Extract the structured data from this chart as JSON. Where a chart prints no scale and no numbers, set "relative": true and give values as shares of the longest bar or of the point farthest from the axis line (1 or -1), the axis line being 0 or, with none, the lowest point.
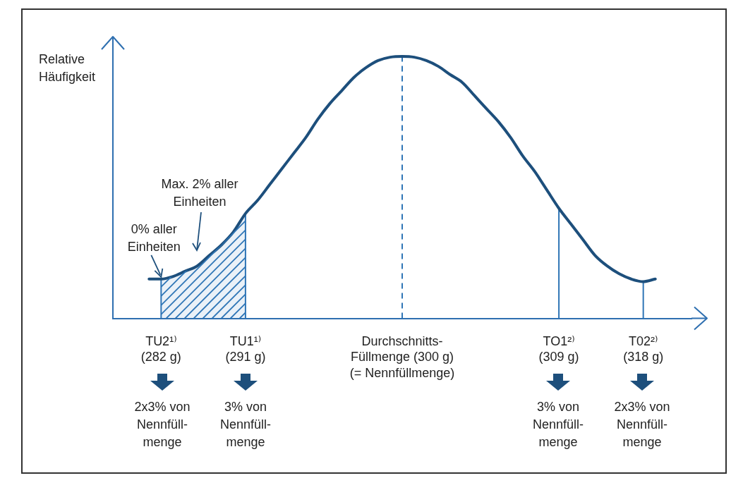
{
  "chart_data": {
    "type": "line",
    "relative": true,
    "ylabel": "Relative Häufigkeit",
    "grid": false,
    "legend": false,
    "marker": "none",
    "categories": [
      null,
      null,
      null,
      null,
      "TU2¹⁾\n(282 g)",
      null,
      null,
      null,
      null,
      null,
      null,
      "TU1¹⁾\n(291 g)",
      null,
      null,
      null,
      null,
      null,
      null,
      null,
      null,
      null,
      null,
      null,
      null,
      "Durchschnitts-\nFüllmenge (300 g)\n(= Nennfüllmenge)",
      null,
      null,
      null,
      null,
      null,
      null,
      null,
      null,
      null,
      null,
      null,
      null,
      "TO1²⁾\n(309 g)",
      null,
      null,
      null,
      null,
      null,
      null,
      "T02²⁾\n(318 g)",
      null,
      null,
      null,
      null
    ],
    "series": [
      {
        "color": "#1d4f7c",
        "values": [
          null,
          null,
          null,
          0.15,
          0.15,
          0.16,
          0.18,
          0.2,
          0.24,
          0.28,
          0.33,
          0.4,
          0.45,
          0.51,
          0.57,
          0.63,
          0.69,
          0.76,
          0.82,
          0.87,
          0.92,
          0.957,
          0.984,
          0.997,
          1,
          0.997,
          0.984,
          0.962,
          0.93,
          0.9,
          0.85,
          0.8,
          0.75,
          0.69,
          0.62,
          0.56,
          0.49,
          0.42,
          0.36,
          0.3,
          0.24,
          0.2,
          0.17,
          0.15,
          0.14,
          0.15,
          null,
          null,
          null
        ]
      },
      {
        "type": "area",
        "color": "#2e75b6",
        "values": [
          null,
          null,
          null,
          null,
          0.15,
          0.16,
          0.18,
          0.2,
          0.24,
          0.28,
          0.33,
          0.4,
          null,
          null,
          null,
          null,
          null,
          null,
          null,
          null,
          null,
          null,
          null,
          null,
          null,
          null,
          null,
          null,
          null,
          null,
          null,
          null,
          null,
          null,
          null,
          null,
          null,
          null,
          null,
          null,
          null,
          null,
          null,
          null,
          null,
          null,
          null,
          null,
          null
        ]
      }
    ],
    "ref_lines": [
      {
        "axis": "x",
        "value": "TU2¹⁾\n(282 g)",
        "line_style": "solid",
        "color": "#2e75b6"
      },
      {
        "axis": "x",
        "value": "TU1¹⁾\n(291 g)",
        "line_style": "solid",
        "color": "#2e75b6"
      },
      {
        "axis": "x",
        "value": "Durchschnitts-\nFüllmenge (300 g)\n(= Nennfüllmenge)",
        "line_style": "dashed",
        "color": "#2e75b6"
      },
      {
        "axis": "x",
        "value": "TO1²⁾\n(309 g)",
        "line_style": "solid",
        "color": "#2e75b6"
      },
      {
        "axis": "x",
        "value": "T02²⁾\n(318 g)",
        "line_style": "solid",
        "color": "#2e75b6"
      }
    ],
    "annotations": [
      {
        "text": "0% aller\nEinheiten",
        "x": "TU2¹⁾\n(282 g)",
        "y": 0.15
      },
      "Max. 2% aller\nEinheiten",
      "2x3% von\nNennfüll-\nmenge",
      "3% von\nNennfüll-\nmenge",
      "3% von\nNennfüll-\nmenge",
      "2x3% von\nNennfüll-\nmenge"
    ]
  }
}
